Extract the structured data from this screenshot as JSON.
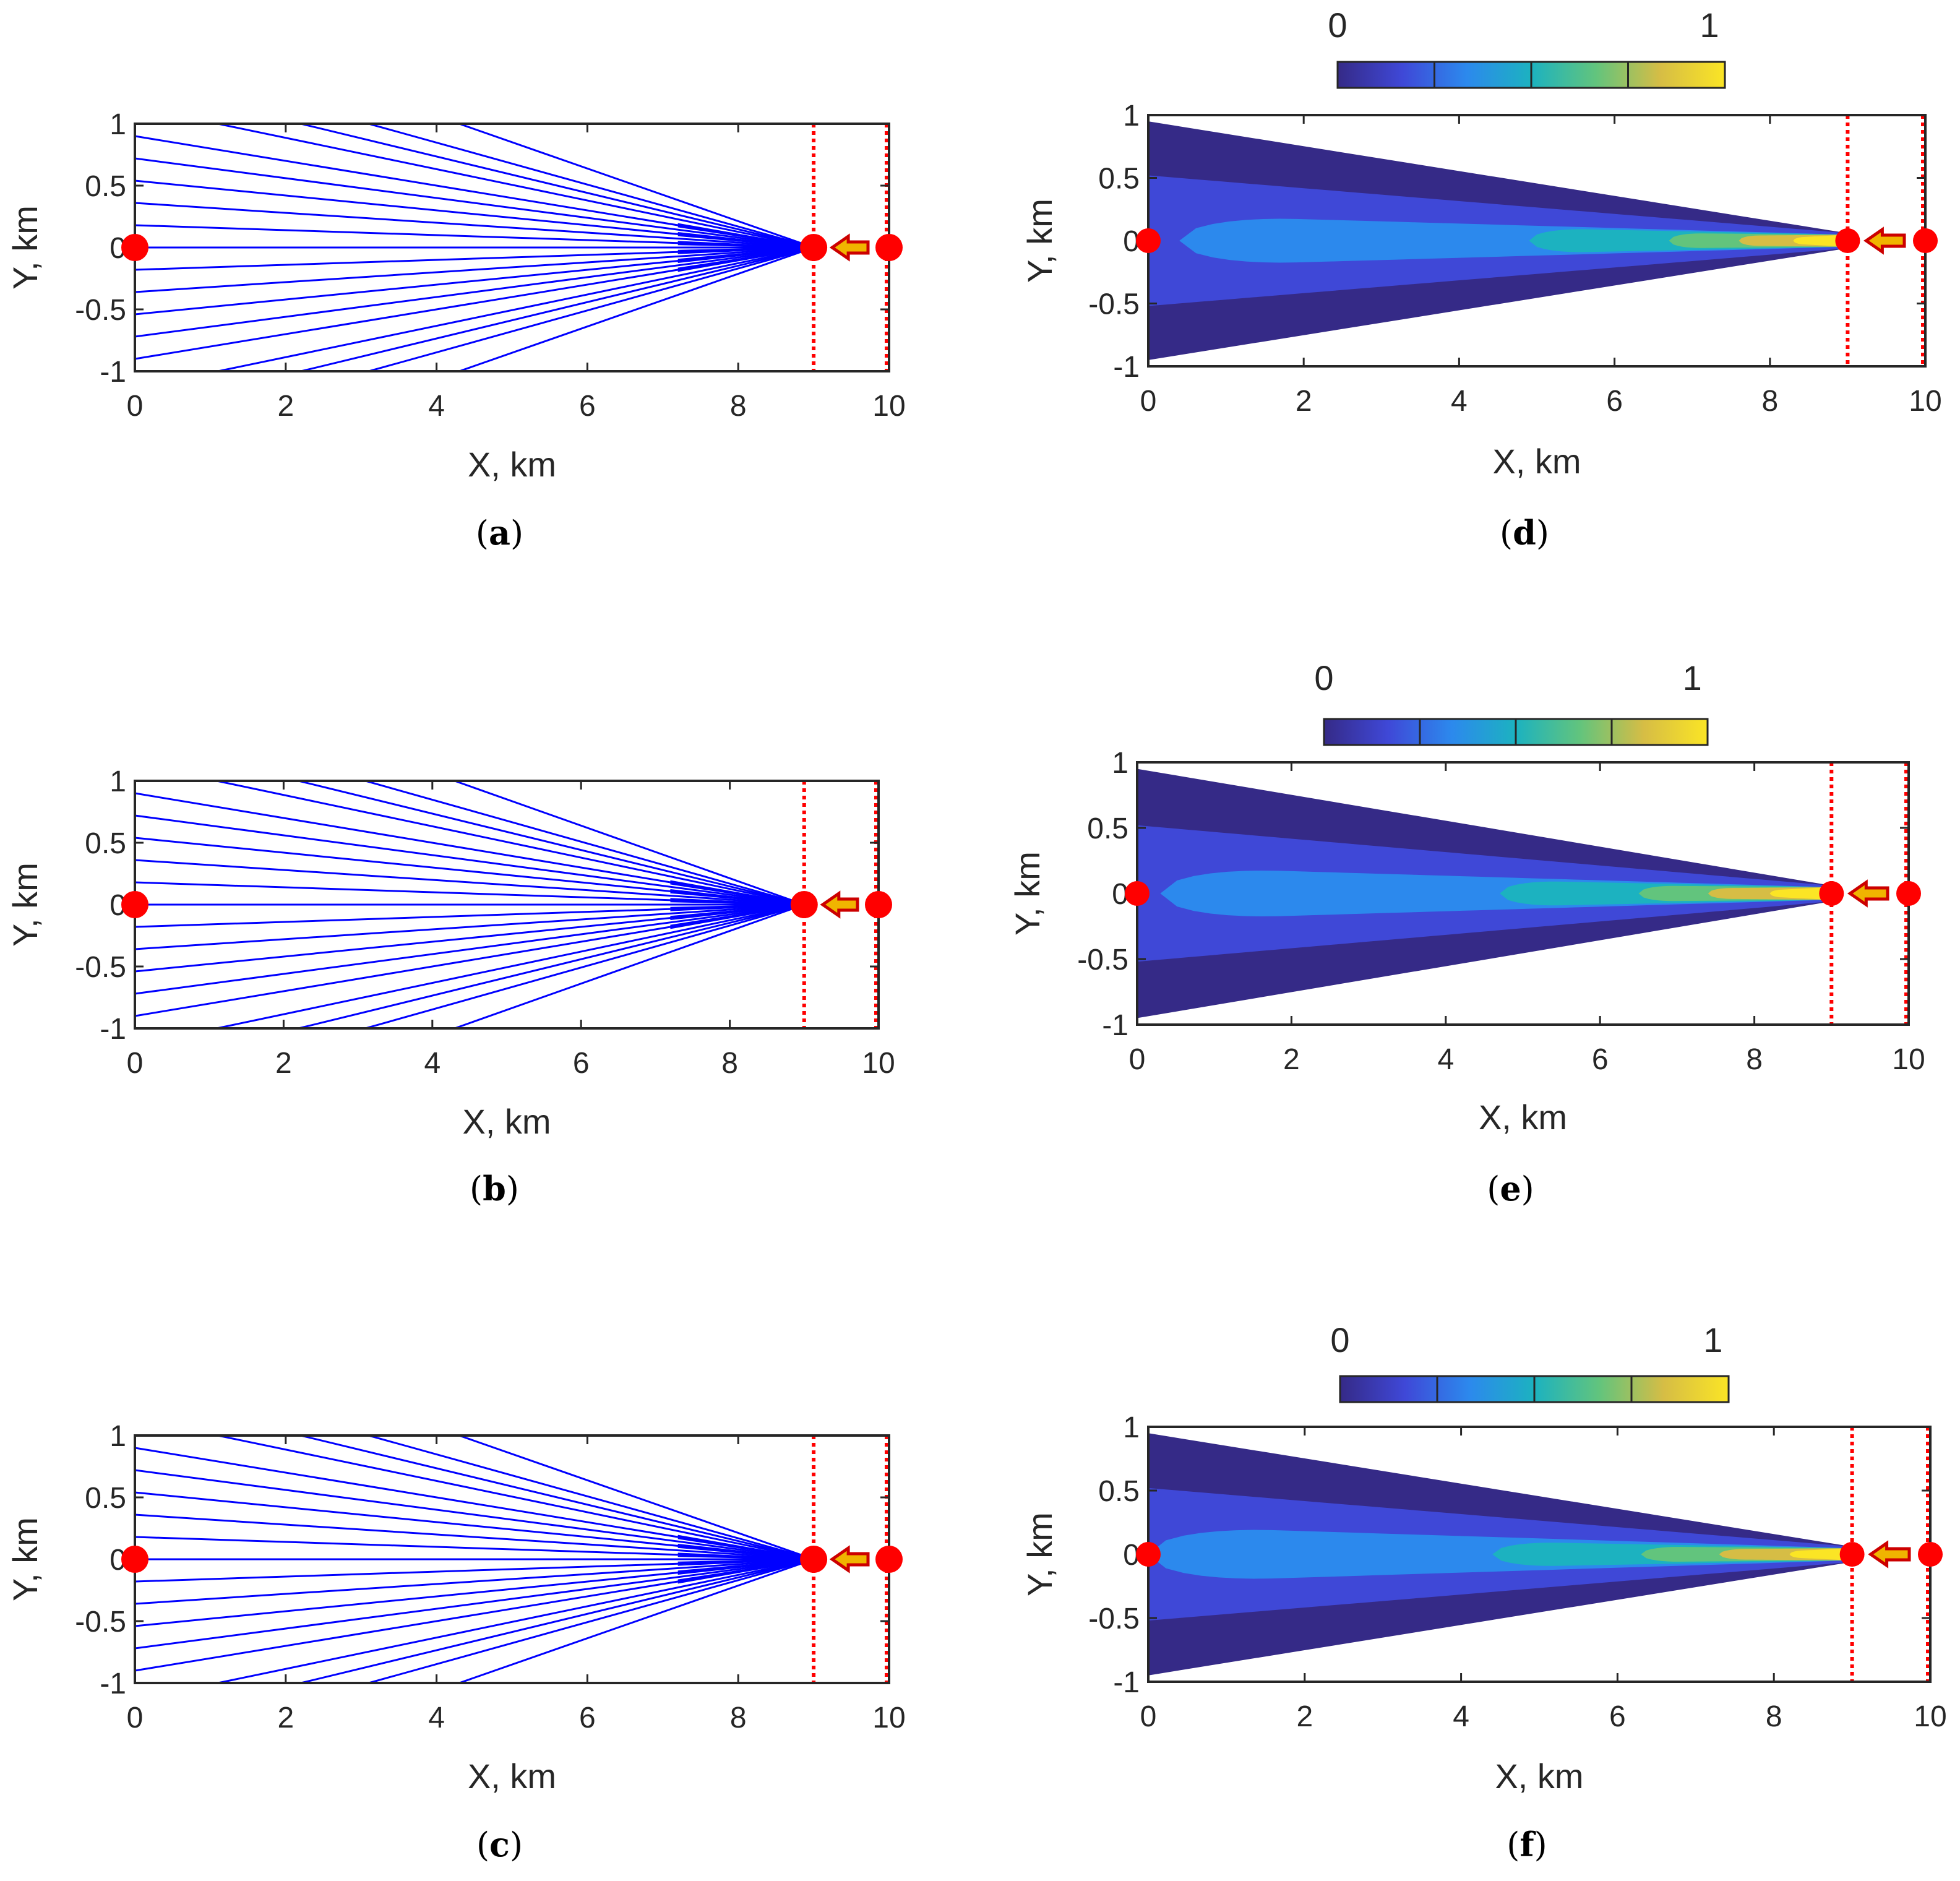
{
  "chart_data": [
    {
      "panel": "a",
      "type": "line",
      "title": "",
      "xlabel": "X, km",
      "ylabel": "Y, km",
      "xlim": [
        0,
        10
      ],
      "ylim": [
        -1,
        1
      ],
      "xticks": [
        "0",
        "2",
        "4",
        "6",
        "8",
        "10"
      ],
      "yticks": [
        "1",
        "0.5",
        "0",
        "-0.5",
        "-1"
      ],
      "convergence_point": [
        9,
        0
      ],
      "ray_start_y": [
        0.9,
        0.72,
        0.54,
        0.36,
        0.18,
        0,
        -0.18,
        -0.36,
        -0.54,
        -0.72,
        -0.9
      ],
      "ray_start_top_x": [
        1.1,
        2.2,
        3.1,
        4.3
      ],
      "ray_start_bottom_x": [
        1.1,
        2.2,
        3.1,
        4.3
      ],
      "dotted_lines_x": [
        9,
        10
      ],
      "markers": [
        [
          0,
          0
        ],
        [
          9,
          0
        ],
        [
          10,
          0
        ]
      ],
      "arrow": {
        "from": [
          10,
          0
        ],
        "to": [
          9,
          0
        ]
      },
      "label": "(a)"
    },
    {
      "panel": "b",
      "type": "line",
      "title": "",
      "xlabel": "X, km",
      "ylabel": "Y, km",
      "xlim": [
        0,
        10
      ],
      "ylim": [
        -1,
        1
      ],
      "xticks": [
        "0",
        "2",
        "4",
        "6",
        "8",
        "10"
      ],
      "yticks": [
        "1",
        "0.5",
        "0",
        "-0.5",
        "-1"
      ],
      "convergence_point": [
        9,
        0
      ],
      "ray_start_y": [
        0.9,
        0.72,
        0.54,
        0.36,
        0.18,
        0,
        -0.18,
        -0.36,
        -0.54,
        -0.72,
        -0.9
      ],
      "ray_start_top_x": [
        1.1,
        2.2,
        3.1,
        4.3
      ],
      "ray_start_bottom_x": [
        1.1,
        2.2,
        3.1,
        4.3
      ],
      "dotted_lines_x": [
        9,
        10
      ],
      "markers": [
        [
          0,
          0
        ],
        [
          9,
          0
        ],
        [
          10,
          0
        ]
      ],
      "arrow": {
        "from": [
          10,
          0
        ],
        "to": [
          9,
          0
        ]
      },
      "label": "(b)"
    },
    {
      "panel": "c",
      "type": "line",
      "title": "",
      "xlabel": "X, km",
      "ylabel": "Y, km",
      "xlim": [
        0,
        10
      ],
      "ylim": [
        -1,
        1
      ],
      "xticks": [
        "0",
        "2",
        "4",
        "6",
        "8",
        "10"
      ],
      "yticks": [
        "1",
        "0.5",
        "0",
        "-0.5",
        "-1"
      ],
      "convergence_point": [
        9,
        0
      ],
      "ray_start_y": [
        0.9,
        0.72,
        0.54,
        0.36,
        0.18,
        0,
        -0.18,
        -0.36,
        -0.54,
        -0.72,
        -0.9
      ],
      "ray_start_top_x": [
        1.1,
        2.2,
        3.1,
        4.3
      ],
      "ray_start_bottom_x": [
        1.1,
        2.2,
        3.1,
        4.3
      ],
      "dotted_lines_x": [
        9,
        10
      ],
      "markers": [
        [
          0,
          0
        ],
        [
          9,
          0
        ],
        [
          10,
          0
        ]
      ],
      "arrow": {
        "from": [
          10,
          0
        ],
        "to": [
          9,
          0
        ]
      },
      "label": "(c)"
    },
    {
      "panel": "d",
      "type": "heatmap",
      "title": "",
      "xlabel": "X, km",
      "ylabel": "Y, km",
      "xlim": [
        0,
        10
      ],
      "ylim": [
        -1,
        1
      ],
      "xticks": [
        "0",
        "2",
        "4",
        "6",
        "8",
        "10"
      ],
      "yticks": [
        "1",
        "0.5",
        "0",
        "-0.5",
        "-1"
      ],
      "colorbar": {
        "min_label": "0",
        "max_label": "1",
        "levels": 4
      },
      "wedge": {
        "x0": 0,
        "half_width0": 0.95,
        "x1": 9,
        "half_width1": 0.06
      },
      "bands": [
        {
          "level": 1,
          "x_start": 0,
          "half_width0": 0.52
        },
        {
          "level": 2,
          "x_start": 0.4,
          "half_width0": 0.2
        },
        {
          "level": 3,
          "x_start": 4.9,
          "half_width0": 0.1
        },
        {
          "level": 4,
          "x_start": 6.7,
          "half_width0": 0.06
        },
        {
          "level": 5,
          "x_start": 7.6,
          "half_width0": 0.04
        },
        {
          "level": 6,
          "x_start": 8.3,
          "half_width0": 0.025
        }
      ],
      "dotted_lines_x": [
        9,
        10
      ],
      "markers": [
        [
          0,
          0
        ],
        [
          9,
          0
        ],
        [
          10,
          0
        ]
      ],
      "arrow": {
        "from": [
          10,
          0
        ],
        "to": [
          9,
          0
        ]
      },
      "label": "(d)"
    },
    {
      "panel": "e",
      "type": "heatmap",
      "title": "",
      "xlabel": "X, km",
      "ylabel": "Y, km",
      "xlim": [
        0,
        10
      ],
      "ylim": [
        -1,
        1
      ],
      "xticks": [
        "0",
        "2",
        "4",
        "6",
        "8",
        "10"
      ],
      "yticks": [
        "1",
        "0.5",
        "0",
        "-0.5",
        "-1"
      ],
      "colorbar": {
        "min_label": "0",
        "max_label": "1",
        "levels": 4
      },
      "wedge": {
        "x0": 0,
        "half_width0": 0.95,
        "x1": 9,
        "half_width1": 0.06
      },
      "bands": [
        {
          "level": 1,
          "x_start": 0,
          "half_width0": 0.52
        },
        {
          "level": 2,
          "x_start": 0.3,
          "half_width0": 0.2
        },
        {
          "level": 3,
          "x_start": 4.7,
          "half_width0": 0.1
        },
        {
          "level": 4,
          "x_start": 6.5,
          "half_width0": 0.06
        },
        {
          "level": 5,
          "x_start": 7.4,
          "half_width0": 0.04
        },
        {
          "level": 6,
          "x_start": 8.2,
          "half_width0": 0.025
        }
      ],
      "dotted_lines_x": [
        9,
        10
      ],
      "markers": [
        [
          0,
          0
        ],
        [
          9,
          0
        ],
        [
          10,
          0
        ]
      ],
      "arrow": {
        "from": [
          10,
          0
        ],
        "to": [
          9,
          0
        ]
      },
      "label": "(e)"
    },
    {
      "panel": "f",
      "type": "heatmap",
      "title": "",
      "xlabel": "X, km",
      "ylabel": "Y, km",
      "xlim": [
        0,
        10
      ],
      "ylim": [
        -1,
        1
      ],
      "xticks": [
        "0",
        "2",
        "4",
        "6",
        "8",
        "10"
      ],
      "yticks": [
        "1",
        "0.5",
        "0",
        "-0.5",
        "-1"
      ],
      "colorbar": {
        "min_label": "0",
        "max_label": "1",
        "levels": 4
      },
      "wedge": {
        "x0": 0,
        "half_width0": 0.95,
        "x1": 9,
        "half_width1": 0.06
      },
      "bands": [
        {
          "level": 1,
          "x_start": 0,
          "half_width0": 0.52
        },
        {
          "level": 2,
          "x_start": 0,
          "half_width0": 0.22
        },
        {
          "level": 3,
          "x_start": 4.4,
          "half_width0": 0.1
        },
        {
          "level": 4,
          "x_start": 6.3,
          "half_width0": 0.06
        },
        {
          "level": 5,
          "x_start": 7.3,
          "half_width0": 0.04
        },
        {
          "level": 6,
          "x_start": 8.2,
          "half_width0": 0.025
        }
      ],
      "dotted_lines_x": [
        9,
        10
      ],
      "markers": [
        [
          0,
          0
        ],
        [
          9,
          0
        ],
        [
          10,
          0
        ]
      ],
      "arrow": {
        "from": [
          10,
          0
        ],
        "to": [
          9,
          0
        ]
      },
      "label": "(f)"
    }
  ],
  "colors": {
    "ray": "#0000ff",
    "marker": "#ff0000",
    "dotted": "#ff0000",
    "arrow_fill": "#f0b400",
    "arrow_stroke": "#cc0000",
    "levels": [
      "#352a87",
      "#3f48d7",
      "#2c89ed",
      "#1cb2c0",
      "#62c47d",
      "#d6bd45",
      "#fbe525"
    ]
  }
}
